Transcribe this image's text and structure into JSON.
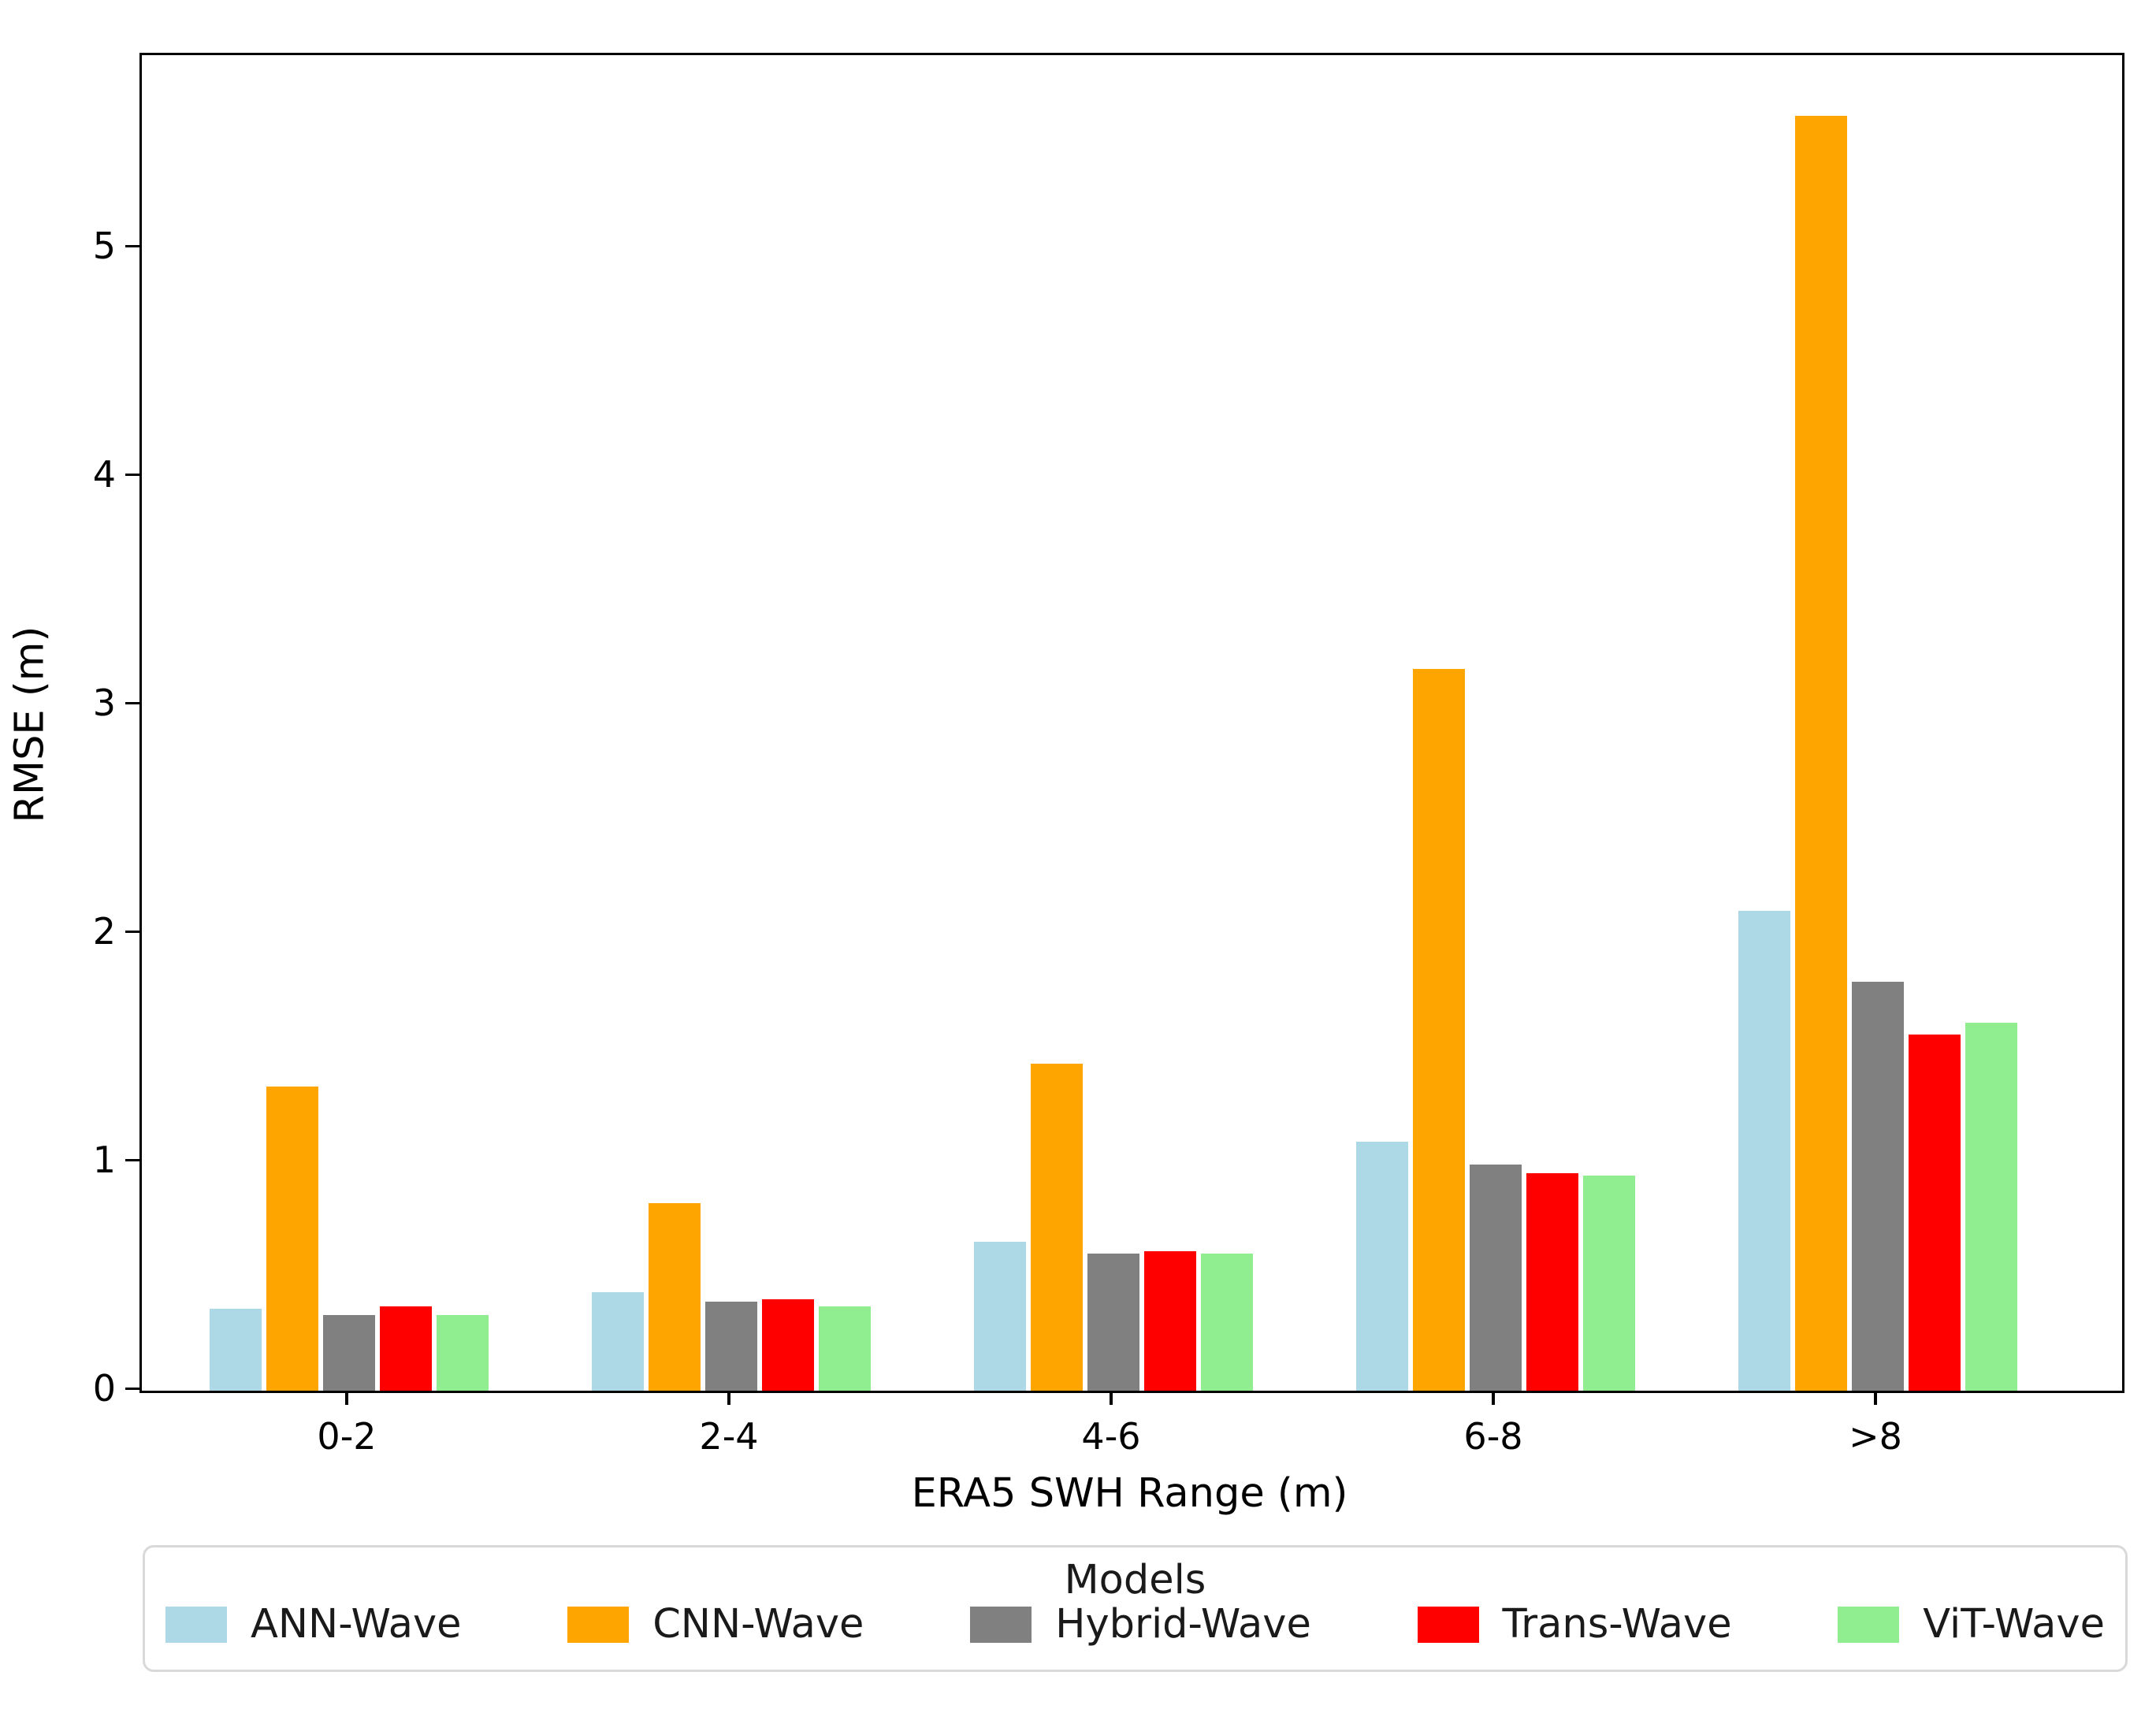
{
  "chart_data": {
    "type": "bar",
    "title": "",
    "xlabel": "ERA5 SWH Range (m)",
    "ylabel": "RMSE (m)",
    "categories": [
      "0-2",
      "2-4",
      "4-6",
      "6-8",
      ">8"
    ],
    "series": [
      {
        "name": "ANN-Wave",
        "color": "#ADD8E6",
        "values": [
          0.36,
          0.43,
          0.65,
          1.09,
          2.1
        ]
      },
      {
        "name": "CNN-Wave",
        "color": "#FFA500",
        "values": [
          1.33,
          0.82,
          1.43,
          3.16,
          5.58
        ]
      },
      {
        "name": "Hybrid-Wave",
        "color": "#808080",
        "values": [
          0.33,
          0.39,
          0.6,
          0.99,
          1.79
        ]
      },
      {
        "name": "Trans-Wave",
        "color": "#FF0000",
        "values": [
          0.37,
          0.4,
          0.61,
          0.95,
          1.56
        ]
      },
      {
        "name": "ViT-Wave",
        "color": "#90EE90",
        "values": [
          0.33,
          0.37,
          0.6,
          0.94,
          1.61
        ]
      }
    ],
    "yticks": [
      0,
      1,
      2,
      3,
      4,
      5
    ],
    "ylim": [
      0,
      5.85
    ],
    "grid": false,
    "legend": {
      "title": "Models",
      "position": "bottom"
    },
    "axis_color": "#000000",
    "background_color": "#ffffff"
  }
}
